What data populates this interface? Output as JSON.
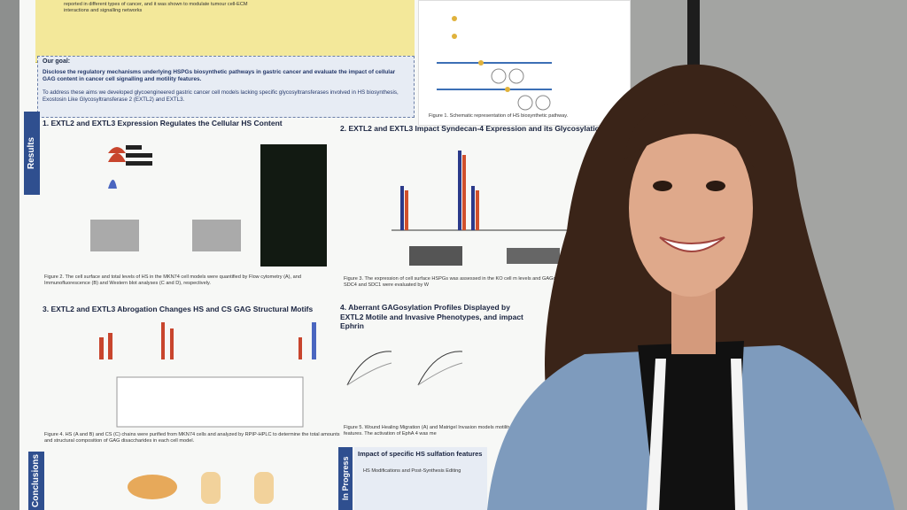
{
  "poster": {
    "intro": "reported in different types of cancer, and it was shown to modulate tumour cell-ECM interactions and signalling networks",
    "goal_title": "Our goal:",
    "goal_text": "Disclose the regulatory mechanisms underlying HSPGs biosynthetic pathways in gastric cancer and evaluate the impact of cellular GAG content in cancer cell signalling and motility features.",
    "goal_approach": "To address these aims we developed glycoengineered gastric cancer cell models lacking specific glycosyltransferases involved in HS biosynthesis, Exostosin Like Glycosyltransferase 2 (EXTL2) and EXTL3.",
    "figure1_caption": "Figure 1. Schematic representation of HS biosynthetic pathway.",
    "results_tab": "Results",
    "conclusions_tab": "Conclusions",
    "progress_tab": "In Progress",
    "sections": [
      {
        "title": "1. EXTL2 and EXTL3 Expression Regulates the Cellular HS Content",
        "caption": "Figure 2. The cell surface and total levels of HS in the MKN74 cell models were quantified by Flow cytometry (A), and Immunofluorescence (B) and Western blot analyses (C and D), respectively."
      },
      {
        "title": "2. EXTL2 and EXTL3 Impact Syndecan-4 Expression and its Glycosylation Pr",
        "caption": "Figure 3. The expression of cell surface HSPGs was assessed in the KO cell m levels and GAGosylation profiles of SDC4 and SDC1 were evaluated by W"
      },
      {
        "title": "3. EXTL2 and EXTL3 Abrogation Changes HS and CS GAG Structural Motifs",
        "caption": "Figure 4. HS (A and B) and CS (C) chains were purified from MKN74 cells and analyzed by RPIP-HPLC to determine the total amounts and structural composition of GAG disaccharides in each cell model."
      },
      {
        "title": "4. Aberrant GAGosylation Profiles Displayed by EXTL2 Motile and Invasive Phenotypes, and impact Ephrin",
        "caption": "Figure 5. Wound Healing Migration (A) and Matrigel Invasion models motility features. The activation of EphA 4 was me"
      }
    ],
    "progress_title": "Impact of specific HS sulfation features",
    "progress_subtitle": "HS Modifications and Post-Synthesis Editing"
  }
}
